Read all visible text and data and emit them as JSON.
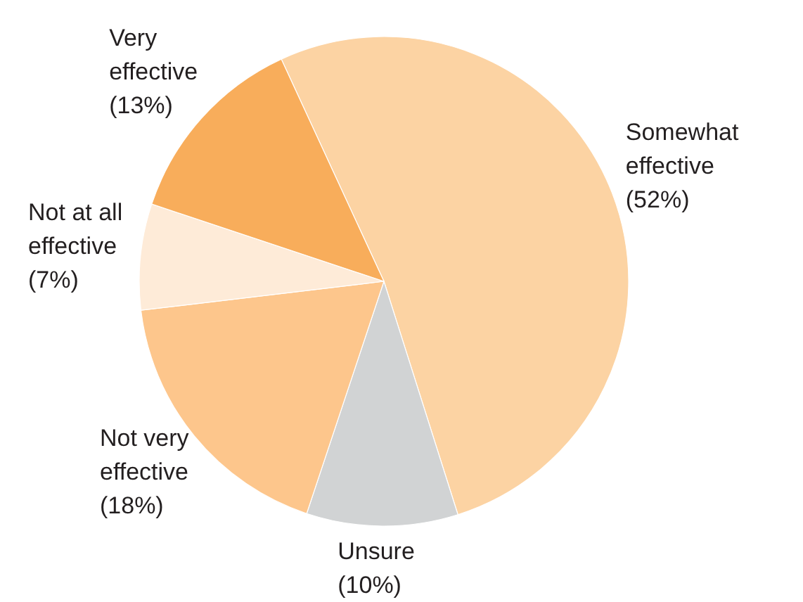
{
  "chart_data": {
    "type": "pie",
    "categories": [
      "Somewhat effective",
      "Unsure",
      "Not very effective",
      "Not at all effective",
      "Very effective"
    ],
    "values": [
      52,
      10,
      18,
      7,
      13
    ],
    "colors": [
      "#fcd3a3",
      "#d1d3d4",
      "#fdc68c",
      "#feebd8",
      "#f8ad5b"
    ],
    "value_labels": [
      "(52%)",
      "(10%)",
      "(18%)",
      "(7%)",
      "(13%)"
    ]
  }
}
